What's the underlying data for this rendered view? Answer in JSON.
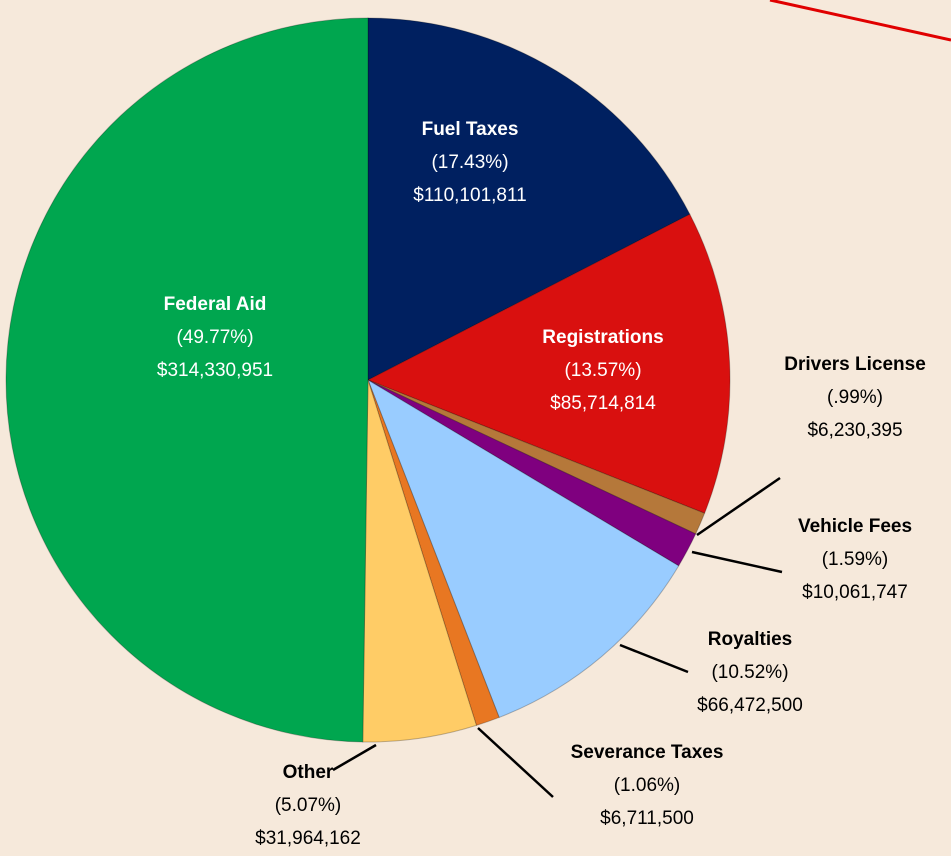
{
  "chart_data": {
    "type": "pie",
    "categories": [
      "Fuel Taxes",
      "Registrations",
      "Drivers License",
      "Vehicle Fees",
      "Royalties",
      "Severance Taxes",
      "Other",
      "Federal Aid"
    ],
    "values": [
      17.43,
      13.57,
      0.99,
      1.59,
      10.52,
      1.06,
      5.07,
      49.77
    ],
    "value_labels": [
      "(17.43%)",
      "(13.57%)",
      "(.99%)",
      "(1.59%)",
      "(10.52%)",
      "(1.06%)",
      "(5.07%)",
      "(49.77%)"
    ],
    "amounts": [
      110101811,
      85714814,
      6230395,
      10061747,
      66472500,
      6711500,
      31964162,
      314330951
    ],
    "amount_labels": [
      "$110,101,811",
      "$85,714,814",
      "$6,230,395",
      "$10,061,747",
      "$66,472,500",
      "$6,711,500",
      "$31,964,162",
      "$314,330,951"
    ],
    "colors": [
      "#002060",
      "#d9100f",
      "#b5783a",
      "#7f007f",
      "#99ccff",
      "#e87722",
      "#ffcc66",
      "#00a64f"
    ]
  }
}
